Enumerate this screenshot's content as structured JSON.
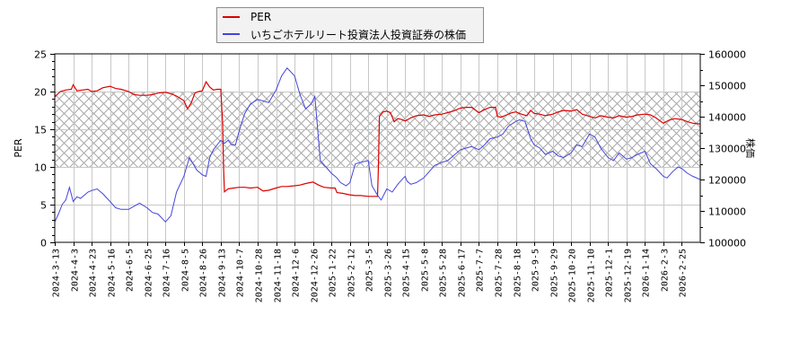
{
  "legend": {
    "items": [
      {
        "label": "PER",
        "color": "#dd0000"
      },
      {
        "label": "いちごホテルリート投資法人投資証券の株価",
        "color": "#4444dd"
      }
    ]
  },
  "axes": {
    "left_title": "PER",
    "right_title": "株価",
    "left_ticks": [
      "0",
      "5",
      "10",
      "15",
      "20",
      "25"
    ],
    "right_ticks": [
      "100000",
      "110000",
      "120000",
      "130000",
      "140000",
      "150000",
      "160000"
    ]
  },
  "chart_data": {
    "type": "line",
    "title": "",
    "xlabel": "",
    "ylabel": "PER",
    "ylabel_right": "株価",
    "ylim": [
      0,
      25
    ],
    "ylim_right": [
      100000,
      160000
    ],
    "grid": true,
    "legend_position": "top",
    "shaded_band": {
      "y_from": 10,
      "y_to": 20,
      "pattern": "crosshatch"
    },
    "x_tick_labels": [
      "2024-3-13",
      "2024-4-3",
      "2024-4-23",
      "2024-5-16",
      "2024-6-5",
      "2024-6-25",
      "2024-7-16",
      "2024-8-5",
      "2024-8-26",
      "2024-9-13",
      "2024-10-7",
      "2024-10-28",
      "2024-11-18",
      "2024-12-6",
      "2024-12-26",
      "2025-1-22",
      "2025-2-12",
      "2025-3-5",
      "2025-3-26",
      "2025-4-15",
      "2025-5-8",
      "2025-5-28",
      "2025-6-17",
      "2025-7-7",
      "2025-7-28",
      "2025-8-18",
      "2025-9-5",
      "2025-9-29",
      "2025-10-20",
      "2025-11-10",
      "2025-12-1",
      "2025-12-19",
      "2026-1-14",
      "2026-2-3",
      "2026-2-25"
    ],
    "series": [
      {
        "name": "PER",
        "axis": "left",
        "color": "#dd0000",
        "x": [
          0,
          0.3,
          0.6,
          0.9,
          1.0,
          1.2,
          1.5,
          1.8,
          2.0,
          2.3,
          2.6,
          3.0,
          3.3,
          3.6,
          4.0,
          4.3,
          4.6,
          5.0,
          5.3,
          5.6,
          6.0,
          6.3,
          6.6,
          7.0,
          7.2,
          7.4,
          7.6,
          7.8,
          8.0,
          8.2,
          8.4,
          8.6,
          8.8,
          9.0,
          9.1,
          9.15,
          9.2,
          9.4,
          9.7,
          10.0,
          10.3,
          10.6,
          11.0,
          11.3,
          11.6,
          12.0,
          12.3,
          12.6,
          13.0,
          13.3,
          13.6,
          14.0,
          14.3,
          14.6,
          15.0,
          15.2,
          15.3,
          15.6,
          16.0,
          16.3,
          16.6,
          17.0,
          17.2,
          17.5,
          17.55,
          17.6,
          17.8,
          18.0,
          18.2,
          18.4,
          18.6,
          18.8,
          19.0,
          19.3,
          19.6,
          20.0,
          20.3,
          20.6,
          21.0,
          21.3,
          21.6,
          22.0,
          22.3,
          22.6,
          23.0,
          23.3,
          23.6,
          23.9,
          24.0,
          24.2,
          24.5,
          24.8,
          25.0,
          25.3,
          25.6,
          25.8,
          26.0,
          26.3,
          26.6,
          27.0,
          27.3,
          27.6,
          28.0,
          28.3,
          28.6,
          29.0,
          29.3,
          29.6,
          30.0,
          30.3,
          30.6,
          31.0,
          31.3,
          31.6,
          32.0,
          32.3,
          32.6,
          33.0,
          33.3,
          33.6,
          34.0,
          34.3,
          34.6,
          35.0
        ],
        "values": [
          19.3,
          20.0,
          20.2,
          20.3,
          20.9,
          20.1,
          20.2,
          20.3,
          20.0,
          20.1,
          20.5,
          20.7,
          20.4,
          20.3,
          20.0,
          19.6,
          19.5,
          19.5,
          19.6,
          19.8,
          19.9,
          19.7,
          19.4,
          18.8,
          17.7,
          18.5,
          19.8,
          20.0,
          20.1,
          21.3,
          20.6,
          20.2,
          20.3,
          20.3,
          16.0,
          10.0,
          6.7,
          7.1,
          7.2,
          7.3,
          7.3,
          7.2,
          7.3,
          6.8,
          6.9,
          7.2,
          7.4,
          7.4,
          7.5,
          7.6,
          7.8,
          8.0,
          7.6,
          7.3,
          7.2,
          7.2,
          6.6,
          6.5,
          6.3,
          6.2,
          6.2,
          6.1,
          6.1,
          6.1,
          10.0,
          16.7,
          17.3,
          17.4,
          17.2,
          16.0,
          16.4,
          16.3,
          16.1,
          16.5,
          16.8,
          16.9,
          16.7,
          16.9,
          17.0,
          17.2,
          17.4,
          17.8,
          17.9,
          17.9,
          17.2,
          17.6,
          17.9,
          17.9,
          16.7,
          16.6,
          16.9,
          17.2,
          17.3,
          17.0,
          16.8,
          17.5,
          17.1,
          17.0,
          16.8,
          17.0,
          17.3,
          17.5,
          17.4,
          17.6,
          17.0,
          16.7,
          16.5,
          16.8,
          16.6,
          16.5,
          16.8,
          16.6,
          16.7,
          16.9,
          17.0,
          16.9,
          16.5,
          15.8,
          16.2,
          16.4,
          16.3,
          16.0,
          15.8,
          15.7
        ]
      },
      {
        "name": "いちごホテルリート投資法人投資証券の株価",
        "axis": "right",
        "color": "#4444dd",
        "x": [
          0,
          0.2,
          0.4,
          0.6,
          0.8,
          1.0,
          1.2,
          1.4,
          1.6,
          1.8,
          2.0,
          2.3,
          2.6,
          3.0,
          3.3,
          3.6,
          4.0,
          4.3,
          4.6,
          5.0,
          5.3,
          5.6,
          6.0,
          6.3,
          6.6,
          7.0,
          7.3,
          7.5,
          7.7,
          7.9,
          8.0,
          8.2,
          8.4,
          8.6,
          8.8,
          9.0,
          9.2,
          9.4,
          9.6,
          9.8,
          10.0,
          10.3,
          10.6,
          11.0,
          11.3,
          11.6,
          12.0,
          12.3,
          12.6,
          13.0,
          13.3,
          13.6,
          13.9,
          14.1,
          14.4,
          14.7,
          15.0,
          15.2,
          15.3,
          15.5,
          15.8,
          16.0,
          16.3,
          16.6,
          17.0,
          17.2,
          17.5,
          17.7,
          18.0,
          18.3,
          18.6,
          18.9,
          19.0,
          19.1,
          19.3,
          19.6,
          20.0,
          20.3,
          20.6,
          21.0,
          21.3,
          21.6,
          22.0,
          22.3,
          22.6,
          23.0,
          23.3,
          23.6,
          24.0,
          24.3,
          24.6,
          25.0,
          25.2,
          25.5,
          25.8,
          26.0,
          26.3,
          26.6,
          27.0,
          27.3,
          27.6,
          28.0,
          28.3,
          28.6,
          29.0,
          29.3,
          29.6,
          30.0,
          30.3,
          30.6,
          31.0,
          31.3,
          31.6,
          32.0,
          32.3,
          32.6,
          33.0,
          33.2,
          33.5,
          33.8,
          34.0,
          34.3,
          34.6,
          35.0
        ],
        "values": [
          106500,
          109000,
          112000,
          113500,
          117500,
          113000,
          114500,
          114000,
          115000,
          116000,
          116500,
          117000,
          115500,
          113000,
          111000,
          110500,
          110500,
          111500,
          112500,
          111000,
          109500,
          109000,
          106500,
          108500,
          116000,
          121000,
          127000,
          125000,
          123000,
          122000,
          121500,
          121000,
          127000,
          129500,
          131000,
          132500,
          131500,
          132500,
          131000,
          131000,
          135500,
          141000,
          144000,
          145500,
          145000,
          144500,
          148500,
          153000,
          155500,
          153000,
          147000,
          142500,
          144000,
          146500,
          126000,
          124000,
          122000,
          121000,
          120500,
          119000,
          118000,
          119000,
          125000,
          125500,
          126000,
          118000,
          115000,
          113500,
          117000,
          116000,
          118500,
          120500,
          121000,
          119500,
          118500,
          119000,
          120500,
          122500,
          124500,
          125500,
          126000,
          127500,
          129500,
          130000,
          130500,
          129500,
          131000,
          133000,
          133500,
          134500,
          137000,
          138500,
          139000,
          138500,
          133000,
          131000,
          130000,
          128000,
          129000,
          127500,
          127000,
          128500,
          131000,
          130500,
          134500,
          133500,
          130000,
          127000,
          126000,
          128500,
          126500,
          127000,
          128000,
          129000,
          125000,
          123500,
          121000,
          120500,
          122500,
          124000,
          123500,
          122000,
          121000,
          120000
        ]
      }
    ]
  }
}
